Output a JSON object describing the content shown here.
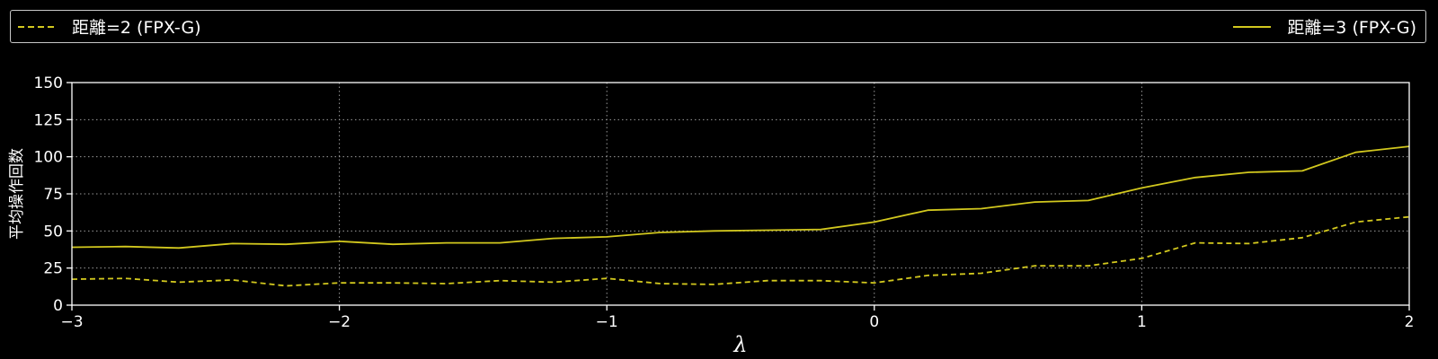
{
  "chart_data": {
    "type": "line",
    "xlabel": "λ",
    "ylabel": "平均操作回数",
    "xlim": [
      -3,
      2
    ],
    "ylim": [
      0,
      150
    ],
    "x_ticks": [
      -3,
      -2,
      -1,
      0,
      1,
      2
    ],
    "x_tick_labels": [
      "−3",
      "−2",
      "−1",
      "0",
      "1",
      "2"
    ],
    "y_ticks": [
      0,
      25,
      50,
      75,
      100,
      125,
      150
    ],
    "y_tick_labels": [
      "0",
      "25",
      "50",
      "75",
      "100",
      "125",
      "150"
    ],
    "grid": true,
    "legend_placement": "top (above plot)",
    "x": [
      -3,
      -2.8,
      -2.6,
      -2.4,
      -2.2,
      -2,
      -1.8,
      -1.6,
      -1.4,
      -1.2,
      -1,
      -0.8,
      -0.6,
      -0.4,
      -0.2,
      0,
      0.2,
      0.4,
      0.6,
      0.8,
      1,
      1.2,
      1.4,
      1.6,
      1.8,
      2
    ],
    "series": [
      {
        "name": "距離=2 (FPX-G)",
        "style": "dashed",
        "color": "#d2c81e",
        "values": [
          17.5,
          18,
          15.5,
          17,
          13,
          15,
          15,
          14.5,
          16.5,
          15.5,
          18,
          14.5,
          14,
          16.5,
          16.5,
          15,
          20,
          21.5,
          26.5,
          26.5,
          31.5,
          42,
          41.5,
          45.5,
          56,
          59.5
        ]
      },
      {
        "name": "距離=3 (FPX-G)",
        "style": "solid",
        "color": "#d2c81e",
        "values": [
          39,
          39.5,
          38.5,
          41.5,
          41,
          43,
          41,
          42,
          42,
          45,
          46,
          49,
          50,
          50.5,
          51,
          56,
          64,
          65,
          69.5,
          70.5,
          79,
          86,
          89.5,
          90.5,
          103,
          107
        ]
      }
    ]
  }
}
